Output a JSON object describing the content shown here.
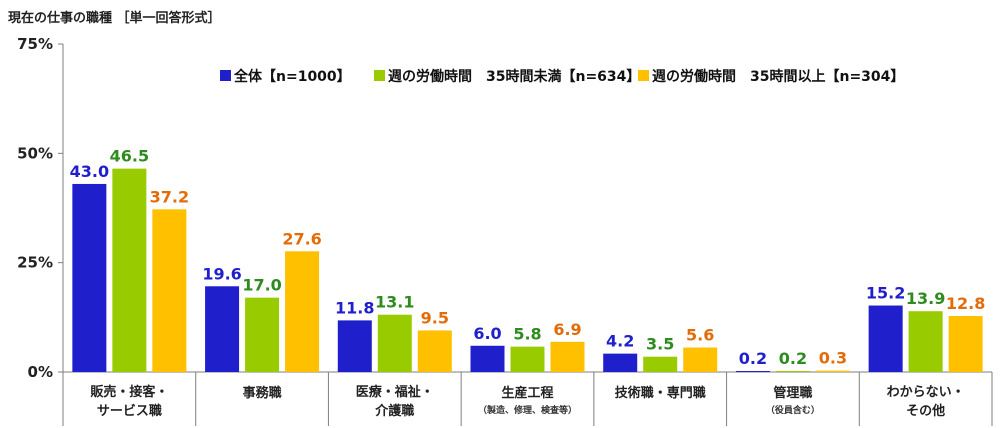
{
  "chart_data": {
    "type": "bar",
    "title": "現在の仕事の職種 ［単一回答形式］",
    "xlabel": "",
    "ylabel": "",
    "ylim": [
      0,
      75
    ],
    "yticks": [
      "0%",
      "25%",
      "50%",
      "75%"
    ],
    "legend_position": "top-right",
    "grid": false,
    "categories": [
      {
        "line1": "販売・接客・",
        "line2": "サービス職",
        "sub": ""
      },
      {
        "line1": "事務職",
        "line2": "",
        "sub": ""
      },
      {
        "line1": "医療・福祉・",
        "line2": "介護職",
        "sub": ""
      },
      {
        "line1": "生産工程",
        "line2": "",
        "sub": "（製造、修理、検査等）"
      },
      {
        "line1": "技術職・専門職",
        "line2": "",
        "sub": ""
      },
      {
        "line1": "管理職",
        "line2": "",
        "sub": "（役員含む）"
      },
      {
        "line1": "わからない・",
        "line2": "その他",
        "sub": ""
      }
    ],
    "series": [
      {
        "name": "全体【n=1000】",
        "color": "#1f1fcc",
        "label_color": "#1f1fcc",
        "values": [
          43.0,
          19.6,
          11.8,
          6.0,
          4.2,
          0.2,
          15.2
        ],
        "labels": [
          "43.0",
          "19.6",
          "11.8",
          "6.0",
          "4.2",
          "0.2",
          "15.2"
        ]
      },
      {
        "name": "週の労働時間　35時間未満【n=634】",
        "color": "#99cc00",
        "label_color": "#2e8b1f",
        "values": [
          46.5,
          17.0,
          13.1,
          5.8,
          3.5,
          0.2,
          13.9
        ],
        "labels": [
          "46.5",
          "17.0",
          "13.1",
          "5.8",
          "3.5",
          "0.2",
          "13.9"
        ]
      },
      {
        "name": "週の労働時間　35時間以上【n=304】",
        "color": "#ffc000",
        "label_color": "#e36c09",
        "values": [
          37.2,
          27.6,
          9.5,
          6.9,
          5.6,
          0.3,
          12.8
        ],
        "labels": [
          "37.2",
          "27.6",
          "9.5",
          "6.9",
          "5.6",
          "0.3",
          "12.8"
        ]
      }
    ]
  }
}
